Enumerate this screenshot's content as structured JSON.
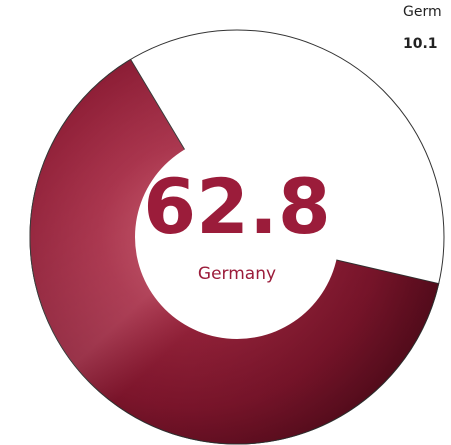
{
  "chart_data": {
    "type": "donut",
    "value": 62.8,
    "label": "Germany",
    "color": "#9b1c3a"
  },
  "side_note": {
    "label": "Germ",
    "value": 10.1
  }
}
